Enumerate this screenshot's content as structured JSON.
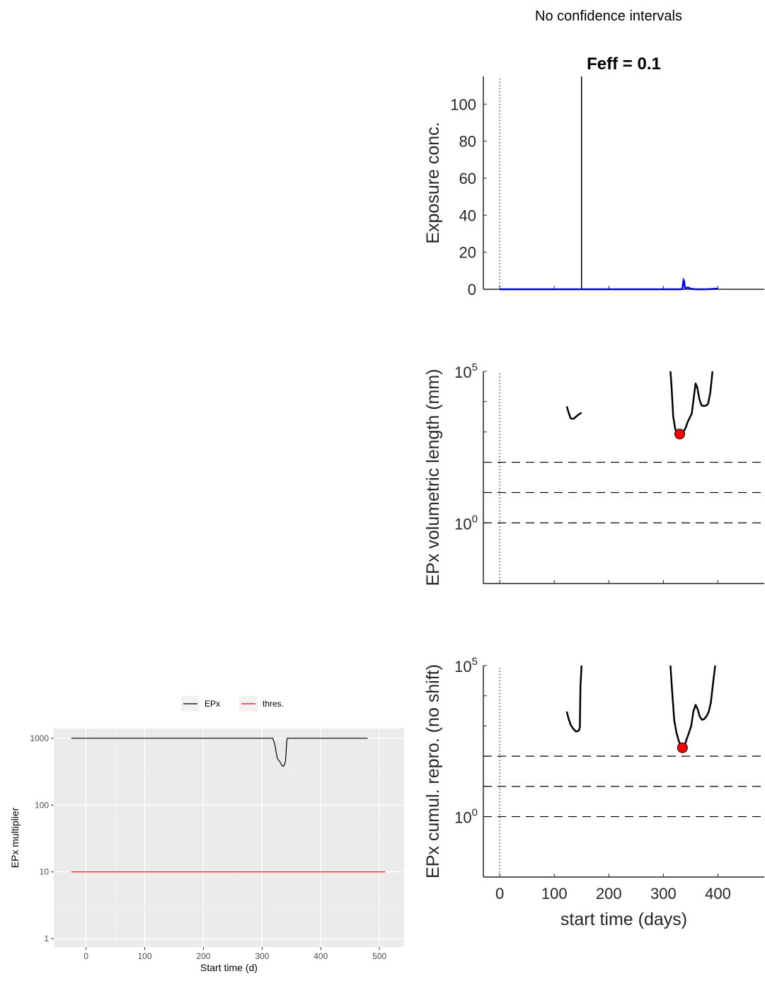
{
  "suptitle": "No confidence intervals",
  "chart_data": [
    {
      "type": "line",
      "title": "Feff = 0.1",
      "ylabel": "Exposure conc.",
      "xlabel": "",
      "xlim": [
        -30,
        485
      ],
      "ylim": [
        0,
        115
      ],
      "yticks": [
        0,
        20,
        40,
        60,
        80,
        100
      ],
      "xticks": [
        0,
        100,
        200,
        300,
        400
      ],
      "show_x_tick_labels": false,
      "grid": false,
      "vline_dotted_x": 0,
      "pulse": {
        "x": 150,
        "y": 115
      },
      "series": [
        {
          "color": "#0000ff",
          "x": [
            0,
            330,
            333,
            335,
            336,
            337,
            338,
            339,
            340,
            341,
            343,
            345,
            350,
            355,
            360,
            380,
            400
          ],
          "y": [
            0,
            0,
            0,
            0.5,
            3,
            5,
            4.5,
            2,
            0.8,
            0.4,
            0.8,
            1,
            0.3,
            0.1,
            0,
            0,
            0.4
          ]
        }
      ]
    },
    {
      "type": "line",
      "title": "",
      "ylabel": "EPx volumetric length (mm)",
      "xlabel": "",
      "ylog": true,
      "xlim": [
        -30,
        485
      ],
      "ylim": [
        0.01,
        100000
      ],
      "ytick_labels": [
        {
          "value": 1,
          "base": "10",
          "exp": "0"
        },
        {
          "value": 100000,
          "base": "10",
          "exp": "5"
        }
      ],
      "yticks": [
        1,
        10,
        100,
        1000,
        10000,
        100000
      ],
      "xticks": [
        0,
        100,
        200,
        300,
        400
      ],
      "show_x_tick_labels": false,
      "grid": false,
      "vline_dotted_x": 0,
      "hlines_dashed": [
        1,
        10,
        100
      ],
      "segments": [
        {
          "x": [
            123,
            126,
            130,
            135,
            140,
            145,
            150
          ],
          "y": [
            7000,
            4500,
            2800,
            2700,
            3200,
            3800,
            4300
          ]
        },
        {
          "x": [
            313,
            315,
            318,
            322,
            326,
            330,
            334,
            338,
            341,
            344,
            348,
            352,
            356,
            359,
            362,
            366,
            370,
            374,
            378,
            382,
            386,
            390
          ],
          "y": [
            100000,
            30000,
            3200,
            1200,
            900,
            850,
            900,
            1100,
            1400,
            2000,
            2900,
            4000,
            15000,
            40000,
            30000,
            12000,
            7500,
            7200,
            7400,
            8500,
            20000,
            100000
          ]
        }
      ],
      "marker": {
        "x": 330,
        "y": 850,
        "color": "#ff0000"
      }
    },
    {
      "type": "line",
      "title": "",
      "ylabel": "EPx cumul. repro. (no shift)",
      "xlabel": "start time (days)",
      "ylog": true,
      "xlim": [
        -30,
        485
      ],
      "ylim": [
        0.01,
        100000
      ],
      "ytick_labels": [
        {
          "value": 1,
          "base": "10",
          "exp": "0"
        },
        {
          "value": 100000,
          "base": "10",
          "exp": "5"
        }
      ],
      "yticks": [
        1,
        10,
        100,
        1000,
        10000,
        100000
      ],
      "xticks": [
        0,
        100,
        200,
        300,
        400
      ],
      "show_x_tick_labels": true,
      "grid": false,
      "vline_dotted_x": 0,
      "hlines_dashed": [
        1,
        10,
        100
      ],
      "segments": [
        {
          "x": [
            123,
            126,
            130,
            135,
            140,
            145,
            147,
            148,
            150
          ],
          "y": [
            3000,
            1800,
            1100,
            800,
            650,
            700,
            900,
            20000,
            100000
          ]
        },
        {
          "x": [
            313,
            316,
            320,
            324,
            328,
            332,
            336,
            339,
            343,
            347,
            351,
            355,
            359,
            363,
            367,
            371,
            375,
            379,
            383,
            387,
            391,
            395
          ],
          "y": [
            100000,
            15000,
            1500,
            600,
            330,
            210,
            190,
            220,
            380,
            600,
            1000,
            3000,
            5000,
            3500,
            2000,
            1600,
            1700,
            2100,
            2900,
            6000,
            25000,
            100000
          ]
        }
      ],
      "marker": {
        "x": 335,
        "y": 190,
        "color": "#ff0000"
      }
    },
    {
      "type": "line",
      "title": "",
      "ylabel": "EPx multiplier",
      "xlabel": "Start time (d)",
      "ylog": true,
      "xlim": [
        -55,
        542
      ],
      "ylim": [
        0.75,
        1400
      ],
      "yticks": [
        1,
        10,
        100,
        1000
      ],
      "ytick_labels": [
        "1",
        "10",
        "100",
        "1000"
      ],
      "xticks": [
        0,
        100,
        200,
        300,
        400,
        500
      ],
      "grid": true,
      "legend": {
        "position": "top",
        "entries": [
          {
            "name": "EPx",
            "color": "#000000"
          },
          {
            "name": "thres.",
            "color": "#ff0000"
          }
        ]
      },
      "series": [
        {
          "name": "EPx",
          "color": "#000000",
          "x": [
            -25,
            318,
            320,
            322,
            324,
            326,
            328,
            330,
            332,
            334,
            336,
            337,
            338,
            340,
            342,
            343,
            480
          ],
          "y": [
            1000,
            1000,
            900,
            780,
            620,
            500,
            470,
            450,
            420,
            390,
            380,
            390,
            400,
            460,
            900,
            1000,
            1000
          ]
        },
        {
          "name": "thres.",
          "color": "#ff0000",
          "x": [
            -25,
            510
          ],
          "y": [
            10,
            10
          ]
        }
      ]
    }
  ]
}
